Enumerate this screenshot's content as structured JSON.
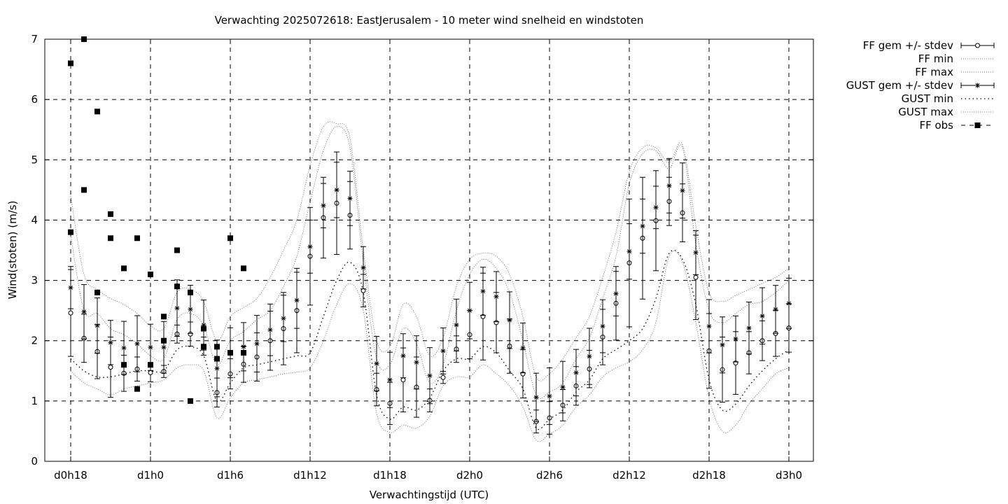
{
  "chart_data": {
    "type": "line",
    "title": "Verwachting 2025072618: EastJerusalem - 10 meter wind snelheid en windstoten",
    "xlabel": "Verwachtingstijd (UTC)",
    "ylabel": "Wind(stoten) (m/s)",
    "ylim": [
      0,
      7
    ],
    "xlim": [
      -0.5,
      57.5
    ],
    "grid": true,
    "legend_position": "top-right, outside plot",
    "x_ticks": [
      {
        "x": 0,
        "label": "d0h18"
      },
      {
        "x": 6,
        "label": "d1h0"
      },
      {
        "x": 12,
        "label": "d1h6"
      },
      {
        "x": 18,
        "label": "d1h12"
      },
      {
        "x": 24,
        "label": "d1h18"
      },
      {
        "x": 30,
        "label": "d2h0"
      },
      {
        "x": 36,
        "label": "d2h6"
      },
      {
        "x": 42,
        "label": "d2h12"
      },
      {
        "x": 48,
        "label": "d2h18"
      },
      {
        "x": 54,
        "label": "d3h0"
      }
    ],
    "y_ticks": [
      "0",
      "1",
      "2",
      "3",
      "4",
      "5",
      "6",
      "7"
    ],
    "x": [
      0,
      1,
      2,
      3,
      4,
      5,
      6,
      7,
      8,
      9,
      10,
      11,
      12,
      13,
      14,
      15,
      16,
      17,
      18,
      19,
      20,
      21,
      22,
      23,
      24,
      25,
      26,
      27,
      28,
      29,
      30,
      31,
      32,
      33,
      34,
      35,
      36,
      37,
      38,
      39,
      40,
      41,
      42,
      43,
      44,
      45,
      46,
      47,
      48,
      49,
      50,
      51,
      52,
      53,
      54
    ],
    "series": [
      {
        "name": "FF gem +/- stdev",
        "marker": "open-circle",
        "mean": [
          2.46,
          2.04,
          1.82,
          1.56,
          1.46,
          1.53,
          1.47,
          1.49,
          2.11,
          2.11,
          1.91,
          1.14,
          1.45,
          1.61,
          1.73,
          2.0,
          2.2,
          2.5,
          3.4,
          4.04,
          4.28,
          4.08,
          2.83,
          1.19,
          0.96,
          1.35,
          1.23,
          1.01,
          1.39,
          1.86,
          2.1,
          2.4,
          2.3,
          1.91,
          1.45,
          0.66,
          0.72,
          0.93,
          1.25,
          1.53,
          2.06,
          2.62,
          3.29,
          3.7,
          3.99,
          4.31,
          4.12,
          3.05,
          1.83,
          1.52,
          1.63,
          1.8,
          2.0,
          2.12,
          2.21
        ],
        "stdev": [
          0.72,
          0.4,
          0.45,
          0.5,
          0.3,
          0.2,
          0.15,
          0.1,
          0.15,
          0.2,
          0.15,
          0.24,
          0.25,
          0.3,
          0.4,
          0.49,
          0.6,
          0.7,
          0.81,
          0.67,
          0.85,
          0.56,
          0.27,
          0.27,
          0.35,
          0.53,
          0.5,
          0.19,
          0.1,
          0.22,
          0.4,
          0.72,
          0.5,
          0.45,
          0.4,
          0.19,
          0.27,
          0.26,
          0.32,
          0.31,
          0.46,
          0.61,
          1.06,
          1.01,
          0.83,
          0.4,
          0.48,
          0.7,
          0.62,
          0.54,
          0.52,
          0.35,
          0.33,
          0.38,
          0.4
        ]
      },
      {
        "name": "FF min",
        "style": "dotted",
        "values": [
          1.5,
          1.3,
          1.2,
          1.1,
          1.2,
          1.25,
          1.3,
          1.35,
          1.55,
          1.6,
          1.5,
          0.72,
          1.05,
          1.3,
          1.35,
          1.4,
          1.45,
          1.48,
          1.55,
          2.0,
          2.6,
          2.95,
          2.5,
          0.8,
          0.48,
          0.6,
          0.55,
          0.75,
          1.25,
          1.4,
          1.4,
          1.6,
          1.45,
          1.25,
          0.9,
          0.35,
          0.45,
          0.6,
          0.9,
          1.1,
          1.4,
          1.55,
          1.65,
          1.85,
          2.3,
          3.4,
          3.3,
          2.3,
          1.05,
          0.5,
          0.6,
          0.95,
          1.2,
          1.45,
          1.55
        ]
      },
      {
        "name": "FF max",
        "style": "dotted",
        "values": [
          3.75,
          2.5,
          2.45,
          2.2,
          2.1,
          1.95,
          1.75,
          1.7,
          2.35,
          2.45,
          2.25,
          1.6,
          2.0,
          2.15,
          2.35,
          2.5,
          2.9,
          3.4,
          4.3,
          5.15,
          5.55,
          5.2,
          3.3,
          1.7,
          1.6,
          2.2,
          1.95,
          1.3,
          1.6,
          2.5,
          3.1,
          3.35,
          3.2,
          2.8,
          2.0,
          1.1,
          1.15,
          1.3,
          1.7,
          2.05,
          2.7,
          3.4,
          4.6,
          5.1,
          5.15,
          4.85,
          5.2,
          3.6,
          2.5,
          2.3,
          2.45,
          2.6,
          2.65,
          2.8,
          3.0
        ]
      },
      {
        "name": "GUST gem +/- stdev",
        "marker": "asterisk",
        "mean": [
          2.88,
          2.48,
          2.25,
          1.97,
          1.88,
          1.95,
          1.89,
          1.89,
          2.54,
          2.52,
          2.26,
          1.54,
          1.8,
          1.9,
          1.95,
          2.18,
          2.37,
          2.67,
          3.56,
          4.24,
          4.5,
          4.36,
          3.21,
          1.62,
          1.35,
          1.75,
          1.64,
          1.42,
          1.83,
          2.26,
          2.5,
          2.82,
          2.73,
          2.34,
          1.88,
          1.06,
          1.08,
          1.23,
          1.47,
          1.74,
          2.24,
          2.78,
          3.48,
          3.9,
          4.21,
          4.57,
          4.49,
          3.46,
          2.24,
          1.93,
          2.03,
          2.21,
          2.41,
          2.52,
          2.62
        ]
      },
      {
        "name": "GUST min",
        "style": "dotted",
        "values": [
          1.7,
          1.5,
          1.4,
          1.4,
          1.45,
          1.5,
          1.5,
          1.5,
          1.85,
          1.9,
          1.75,
          1.0,
          1.3,
          1.55,
          1.6,
          1.65,
          1.7,
          1.75,
          1.8,
          2.4,
          3.0,
          3.3,
          2.8,
          1.1,
          0.7,
          0.9,
          0.85,
          1.05,
          1.5,
          1.7,
          1.7,
          1.9,
          1.8,
          1.5,
          1.2,
          0.55,
          0.7,
          0.85,
          1.15,
          1.35,
          1.7,
          1.85,
          2.0,
          2.2,
          2.7,
          3.45,
          3.35,
          2.6,
          1.35,
          0.85,
          0.95,
          1.25,
          1.5,
          1.7,
          1.85
        ]
      },
      {
        "name": "GUST max",
        "style": "dotted",
        "values": [
          4.4,
          3.1,
          2.85,
          2.7,
          2.6,
          2.45,
          2.25,
          2.2,
          2.8,
          2.85,
          2.65,
          2.0,
          2.4,
          2.55,
          2.7,
          3.05,
          3.5,
          4.0,
          4.9,
          5.55,
          5.6,
          5.35,
          3.5,
          2.0,
          1.9,
          2.6,
          2.4,
          1.75,
          2.05,
          2.9,
          3.35,
          3.45,
          3.4,
          3.1,
          2.4,
          1.4,
          1.45,
          1.7,
          2.05,
          2.4,
          3.05,
          3.8,
          4.8,
          5.2,
          5.2,
          4.95,
          5.25,
          3.9,
          2.8,
          2.65,
          2.75,
          2.85,
          2.95,
          3.05,
          3.2
        ]
      },
      {
        "name": "FF obs",
        "marker": "filled-square",
        "points": [
          {
            "x": 0,
            "y": 6.6
          },
          {
            "x": 0,
            "y": 3.8
          },
          {
            "x": 1,
            "y": 7.0
          },
          {
            "x": 1,
            "y": 4.5
          },
          {
            "x": 2,
            "y": 5.8
          },
          {
            "x": 2,
            "y": 2.8
          },
          {
            "x": 3,
            "y": 4.1
          },
          {
            "x": 3,
            "y": 3.7
          },
          {
            "x": 4,
            "y": 3.2
          },
          {
            "x": 4,
            "y": 1.6
          },
          {
            "x": 5,
            "y": 3.7
          },
          {
            "x": 5,
            "y": 1.2
          },
          {
            "x": 6,
            "y": 3.1
          },
          {
            "x": 6,
            "y": 1.6
          },
          {
            "x": 7,
            "y": 2.4
          },
          {
            "x": 7,
            "y": 2.0
          },
          {
            "x": 8,
            "y": 3.5
          },
          {
            "x": 8,
            "y": 2.9
          },
          {
            "x": 9,
            "y": 2.8
          },
          {
            "x": 9,
            "y": 1.0
          },
          {
            "x": 10,
            "y": 2.2
          },
          {
            "x": 10,
            "y": 1.9
          },
          {
            "x": 11,
            "y": 1.9
          },
          {
            "x": 11,
            "y": 1.7
          },
          {
            "x": 12,
            "y": 3.7
          },
          {
            "x": 12,
            "y": 1.8
          },
          {
            "x": 13,
            "y": 3.2
          },
          {
            "x": 13,
            "y": 1.8
          }
        ]
      }
    ],
    "legend": [
      {
        "label": "FF gem +/- stdev",
        "style": "errorbar-circle"
      },
      {
        "label": "FF min",
        "style": "dotted-fine"
      },
      {
        "label": "FF max",
        "style": "dotted-fine"
      },
      {
        "label": "GUST gem +/- stdev",
        "style": "errorbar-asterisk"
      },
      {
        "label": "GUST min",
        "style": "dotted-coarse"
      },
      {
        "label": "GUST max",
        "style": "dotted-fine"
      },
      {
        "label": "FF obs",
        "style": "dashed-square"
      }
    ]
  }
}
